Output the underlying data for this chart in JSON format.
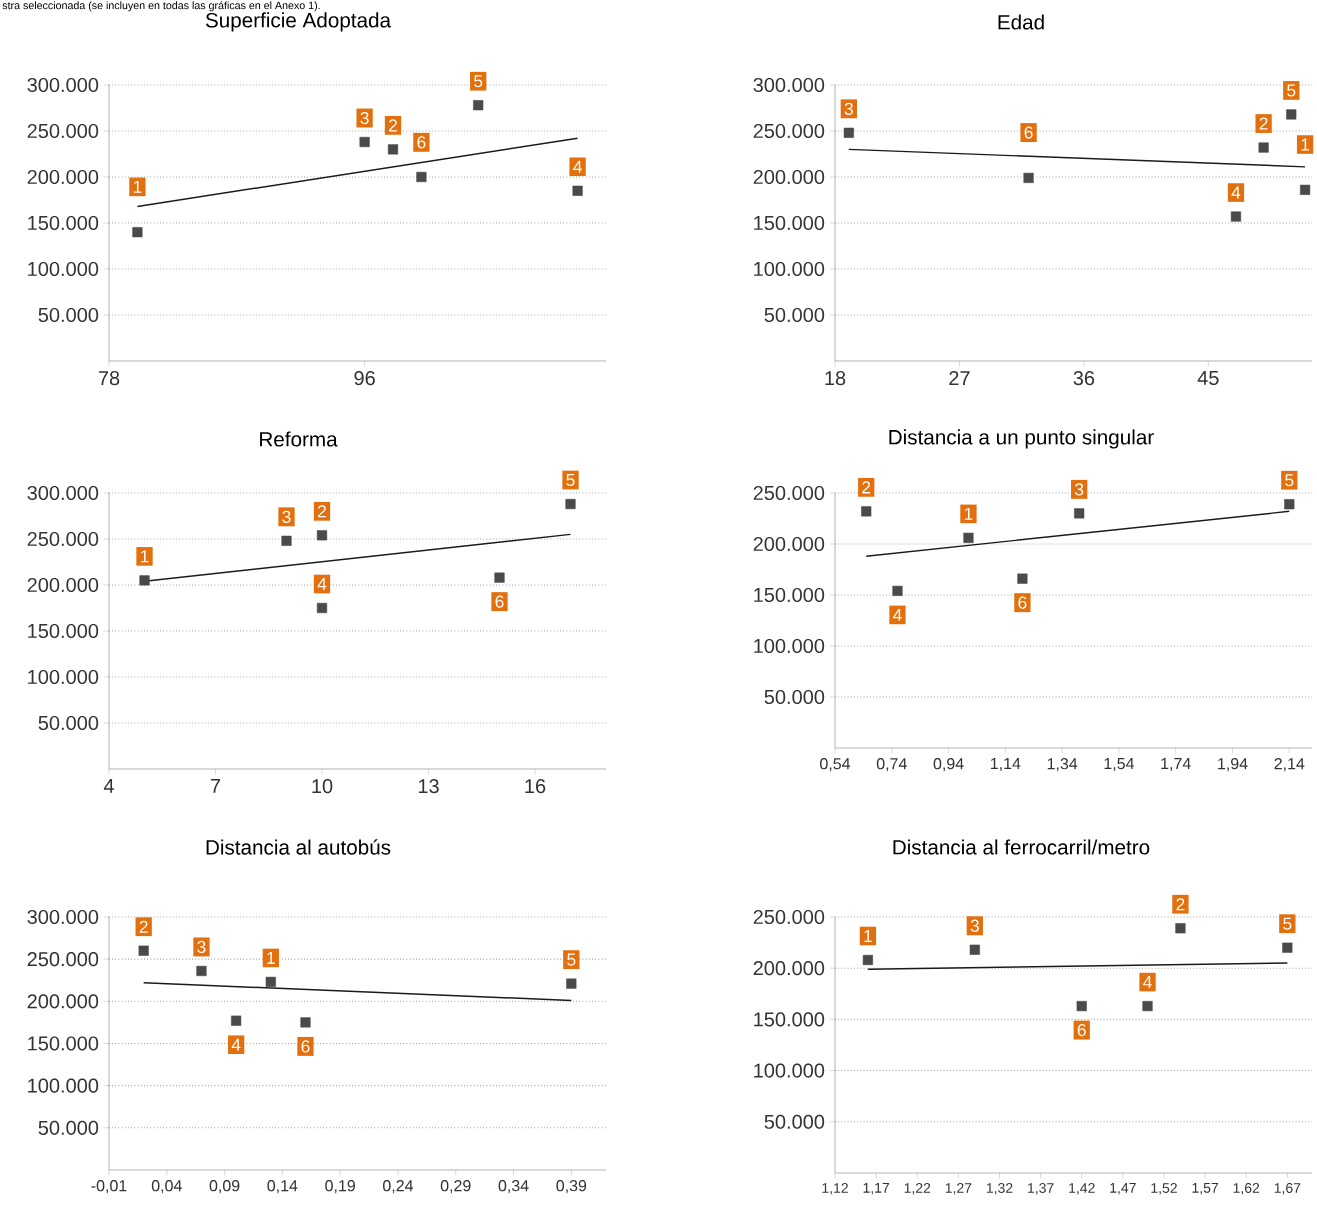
{
  "chart_data": [
    {
      "type": "scatter",
      "title": "Superficie Adoptada",
      "grid": "y",
      "xlim": [
        78,
        113
      ],
      "ylim": [
        0,
        300000
      ],
      "xticks": [
        78,
        96
      ],
      "yticks": [
        {
          "value": 50000,
          "label": "50.000"
        },
        {
          "value": 100000,
          "label": "100.000"
        },
        {
          "value": 150000,
          "label": "150.000"
        },
        {
          "value": 200000,
          "label": "200.000"
        },
        {
          "value": 250000,
          "label": "250.000"
        },
        {
          "value": 300000,
          "label": "300.000"
        }
      ],
      "series": [
        {
          "marker": "square",
          "color": "#4a4a4a",
          "x": [
            80,
            98,
            96,
            111,
            104,
            100
          ],
          "values": [
            140000,
            230000,
            238000,
            185000,
            278000,
            200000
          ]
        },
        {
          "type": "line",
          "color": "#1a1a1a",
          "x": [
            80,
            111
          ],
          "values": [
            168000,
            242000
          ]
        }
      ],
      "annotations": [
        "stra seleccionada (se incluyen en todas las gráficas en el Anexo 1).",
        {
          "text": "1",
          "x": 80,
          "y": 140000
        },
        {
          "text": "2",
          "x": 98,
          "y": 230000
        },
        {
          "text": "3",
          "x": 96,
          "y": 238000
        },
        {
          "text": "4",
          "x": 111,
          "y": 185000
        },
        {
          "text": "5",
          "x": 104,
          "y": 278000
        },
        {
          "text": "6",
          "x": 100,
          "y": 200000
        }
      ]
    },
    {
      "type": "scatter",
      "title": "Edad",
      "grid": "y",
      "xlim": [
        18,
        52.5
      ],
      "ylim": [
        0,
        300000
      ],
      "xticks": [
        18,
        27,
        36,
        45
      ],
      "yticks": [
        {
          "value": 50000,
          "label": "50.000"
        },
        {
          "value": 100000,
          "label": "100.000"
        },
        {
          "value": 150000,
          "label": "150.000"
        },
        {
          "value": 200000,
          "label": "200.000"
        },
        {
          "value": 250000,
          "label": "250.000"
        },
        {
          "value": 300000,
          "label": "300.000"
        }
      ],
      "series": [
        {
          "marker": "square",
          "color": "#4a4a4a",
          "x": [
            52,
            49,
            19,
            47,
            51,
            32
          ],
          "values": [
            186000,
            232000,
            248000,
            157000,
            268000,
            199000
          ]
        },
        {
          "type": "line",
          "color": "#1a1a1a",
          "x": [
            19,
            52
          ],
          "values": [
            230000,
            211000
          ]
        }
      ],
      "annotations": [
        {
          "text": "1",
          "x": 52,
          "y": 186000
        },
        {
          "text": "2",
          "x": 49,
          "y": 232000
        },
        {
          "text": "3",
          "x": 19,
          "y": 248000
        },
        {
          "text": "4",
          "x": 47,
          "y": 157000
        },
        {
          "text": "5",
          "x": 51,
          "y": 268000
        },
        {
          "text": "6",
          "x": 32,
          "y": 199000
        }
      ]
    },
    {
      "type": "scatter",
      "title": "Reforma",
      "grid": "y",
      "xlim": [
        4,
        18
      ],
      "ylim": [
        0,
        300000
      ],
      "xticks": [
        4,
        7,
        10,
        13,
        16
      ],
      "yticks": [
        {
          "value": 50000,
          "label": "50.000"
        },
        {
          "value": 100000,
          "label": "100.000"
        },
        {
          "value": 150000,
          "label": "150.000"
        },
        {
          "value": 200000,
          "label": "200.000"
        },
        {
          "value": 250000,
          "label": "250.000"
        },
        {
          "value": 300000,
          "label": "300.000"
        }
      ],
      "series": [
        {
          "marker": "square",
          "color": "#4a4a4a",
          "x": [
            5,
            10,
            9,
            10,
            17,
            15
          ],
          "values": [
            205000,
            254000,
            248000,
            175000,
            288000,
            208000
          ]
        },
        {
          "type": "line",
          "color": "#1a1a1a",
          "x": [
            5,
            17
          ],
          "values": [
            204000,
            255000
          ]
        }
      ],
      "annotations": [
        {
          "text": "1",
          "x": 5,
          "y": 205000
        },
        {
          "text": "2",
          "x": 10,
          "y": 254000
        },
        {
          "text": "3",
          "x": 9,
          "y": 248000
        },
        {
          "text": "4",
          "x": 10,
          "y": 175000
        },
        {
          "text": "5",
          "x": 17,
          "y": 288000
        },
        {
          "text": "6",
          "x": 15,
          "y": 208000
        }
      ]
    },
    {
      "type": "scatter",
      "title": "Distancia a un punto singular",
      "grid": "y",
      "xlim": [
        0.54,
        2.22
      ],
      "ylim": [
        0,
        250000
      ],
      "xticks": [
        {
          "value": 0.54,
          "label": "0,54"
        },
        {
          "value": 0.74,
          "label": "0,74"
        },
        {
          "value": 0.94,
          "label": "0,94"
        },
        {
          "value": 1.14,
          "label": "1,14"
        },
        {
          "value": 1.34,
          "label": "1,34"
        },
        {
          "value": 1.54,
          "label": "1,54"
        },
        {
          "value": 1.74,
          "label": "1,74"
        },
        {
          "value": 1.94,
          "label": "1,94"
        },
        {
          "value": 2.14,
          "label": "2,14"
        }
      ],
      "yticks": [
        {
          "value": 50000,
          "label": "50.000"
        },
        {
          "value": 100000,
          "label": "100.000"
        },
        {
          "value": 150000,
          "label": "150.000"
        },
        {
          "value": 200000,
          "label": "200.000"
        },
        {
          "value": 250000,
          "label": "250.000"
        }
      ],
      "series": [
        {
          "marker": "square",
          "color": "#4a4a4a",
          "x": [
            1.01,
            0.65,
            1.4,
            0.76,
            2.14,
            1.2
          ],
          "values": [
            206000,
            232000,
            230000,
            154000,
            239000,
            166000
          ]
        },
        {
          "type": "line",
          "color": "#1a1a1a",
          "x": [
            0.65,
            2.14
          ],
          "values": [
            188000,
            232000
          ]
        }
      ],
      "annotations": [
        {
          "text": "1",
          "x": 1.01,
          "y": 206000
        },
        {
          "text": "2",
          "x": 0.65,
          "y": 232000
        },
        {
          "text": "3",
          "x": 1.4,
          "y": 230000
        },
        {
          "text": "4",
          "x": 0.76,
          "y": 154000
        },
        {
          "text": "5",
          "x": 2.14,
          "y": 239000
        },
        {
          "text": "6",
          "x": 1.2,
          "y": 166000
        }
      ]
    },
    {
      "type": "scatter",
      "title": "Distancia al autobús",
      "grid": "y",
      "xlim": [
        -0.01,
        0.42
      ],
      "ylim": [
        0,
        300000
      ],
      "xticks": [
        {
          "value": -0.01,
          "label": "-0,01"
        },
        {
          "value": 0.04,
          "label": "0,04"
        },
        {
          "value": 0.09,
          "label": "0,09"
        },
        {
          "value": 0.14,
          "label": "0,14"
        },
        {
          "value": 0.19,
          "label": "0,19"
        },
        {
          "value": 0.24,
          "label": "0,24"
        },
        {
          "value": 0.29,
          "label": "0,29"
        },
        {
          "value": 0.34,
          "label": "0,34"
        },
        {
          "value": 0.39,
          "label": "0,39"
        }
      ],
      "yticks": [
        {
          "value": 50000,
          "label": "50.000"
        },
        {
          "value": 100000,
          "label": "100.000"
        },
        {
          "value": 150000,
          "label": "150.000"
        },
        {
          "value": 200000,
          "label": "200.000"
        },
        {
          "value": 250000,
          "label": "250.000"
        },
        {
          "value": 300000,
          "label": "300.000"
        }
      ],
      "series": [
        {
          "marker": "square",
          "color": "#4a4a4a",
          "x": [
            0.13,
            0.02,
            0.07,
            0.1,
            0.39,
            0.16
          ],
          "values": [
            223000,
            260000,
            236000,
            177000,
            221000,
            175000
          ]
        },
        {
          "type": "line",
          "color": "#1a1a1a",
          "x": [
            0.02,
            0.39
          ],
          "values": [
            222000,
            201000
          ]
        }
      ],
      "annotations": [
        {
          "text": "1",
          "x": 0.13,
          "y": 223000
        },
        {
          "text": "2",
          "x": 0.02,
          "y": 260000
        },
        {
          "text": "3",
          "x": 0.07,
          "y": 236000
        },
        {
          "text": "4",
          "x": 0.1,
          "y": 177000
        },
        {
          "text": "5",
          "x": 0.39,
          "y": 221000
        },
        {
          "text": "6",
          "x": 0.16,
          "y": 175000
        }
      ]
    },
    {
      "type": "scatter",
      "title": "Distancia al ferrocarril/metro",
      "grid": "y",
      "xlim": [
        1.12,
        1.7
      ],
      "ylim": [
        0,
        250000
      ],
      "xticks": [
        {
          "value": 1.12,
          "label": "1,12"
        },
        {
          "value": 1.17,
          "label": "1,17"
        },
        {
          "value": 1.22,
          "label": "1,22"
        },
        {
          "value": 1.27,
          "label": "1,27"
        },
        {
          "value": 1.32,
          "label": "1,32"
        },
        {
          "value": 1.37,
          "label": "1,37"
        },
        {
          "value": 1.42,
          "label": "1,42"
        },
        {
          "value": 1.47,
          "label": "1,47"
        },
        {
          "value": 1.52,
          "label": "1,52"
        },
        {
          "value": 1.57,
          "label": "1,57"
        },
        {
          "value": 1.62,
          "label": "1,62"
        },
        {
          "value": 1.67,
          "label": "1,67"
        }
      ],
      "yticks": [
        {
          "value": 50000,
          "label": "50.000"
        },
        {
          "value": 100000,
          "label": "100.000"
        },
        {
          "value": 150000,
          "label": "150.000"
        },
        {
          "value": 200000,
          "label": "200.000"
        },
        {
          "value": 250000,
          "label": "250.000"
        }
      ],
      "series": [
        {
          "marker": "square",
          "color": "#4a4a4a",
          "x": [
            1.16,
            1.54,
            1.29,
            1.5,
            1.67,
            1.42
          ],
          "values": [
            208000,
            239000,
            218000,
            163000,
            220000,
            163000
          ]
        },
        {
          "type": "line",
          "color": "#1a1a1a",
          "x": [
            1.16,
            1.67
          ],
          "values": [
            199000,
            205000
          ]
        }
      ],
      "annotations": [
        {
          "text": "1",
          "x": 1.16,
          "y": 208000
        },
        {
          "text": "2",
          "x": 1.54,
          "y": 239000
        },
        {
          "text": "3",
          "x": 1.29,
          "y": 218000
        },
        {
          "text": "4",
          "x": 1.5,
          "y": 163000
        },
        {
          "text": "5",
          "x": 1.67,
          "y": 220000
        },
        {
          "text": "6",
          "x": 1.42,
          "y": 163000
        }
      ]
    }
  ]
}
